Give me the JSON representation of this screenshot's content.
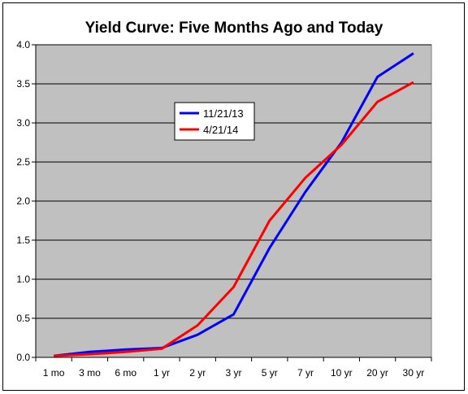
{
  "chart_data": {
    "type": "line",
    "title": "Yield Curve: Five Months Ago and Today",
    "xlabel": "",
    "ylabel": "",
    "categories": [
      "1 mo",
      "3 mo",
      "6 mo",
      "1 yr",
      "2 yr",
      "3 yr",
      "5 yr",
      "7 yr",
      "10 yr",
      "20 yr",
      "30 yr"
    ],
    "ylim": [
      0,
      4.0
    ],
    "yticks": [
      "0.0",
      "0.5",
      "1.0",
      "1.5",
      "2.0",
      "2.5",
      "3.0",
      "3.5",
      "4.0"
    ],
    "grid": true,
    "legend_position": "upper-left-inside",
    "series": [
      {
        "name": "11/21/13",
        "color": "#0000ff",
        "values": [
          0.02,
          0.07,
          0.1,
          0.12,
          0.29,
          0.55,
          1.4,
          2.12,
          2.75,
          3.59,
          3.89
        ]
      },
      {
        "name": "4/21/14",
        "color": "#ff0000",
        "values": [
          0.02,
          0.04,
          0.07,
          0.11,
          0.41,
          0.9,
          1.75,
          2.3,
          2.72,
          3.27,
          3.52
        ]
      }
    ],
    "plot_background": "#c0c0c0"
  }
}
